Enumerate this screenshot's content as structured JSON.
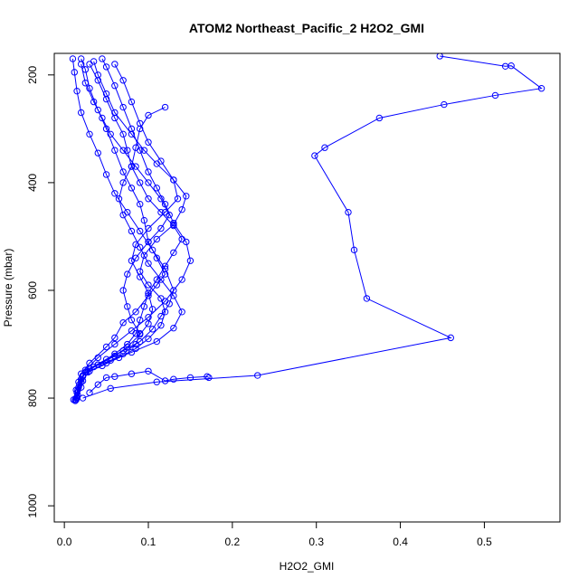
{
  "chart_data": {
    "type": "line",
    "title": "ATOM2 Northeast_Pacific_2 H2O2_GMI",
    "xlabel": "H2O2_GMI",
    "ylabel": "Pressure (mbar)",
    "xlim": [
      -0.012,
      0.59
    ],
    "ylim": [
      1030,
      160
    ],
    "y_reversed": true,
    "x_ticks": [
      0.0,
      0.1,
      0.2,
      0.3,
      0.4,
      0.5
    ],
    "x_tick_labels": [
      "0.0",
      "0.1",
      "0.2",
      "0.3",
      "0.4",
      "0.5"
    ],
    "y_ticks": [
      200,
      400,
      600,
      800,
      1000
    ],
    "y_tick_labels": [
      "200",
      "400",
      "600",
      "800",
      "1000"
    ],
    "grid": false,
    "legend": "none",
    "marker": "open-circle",
    "color": "#0000ff",
    "series": [
      {
        "values": [
          [
            0.013,
            803
          ],
          [
            0.015,
            790
          ],
          [
            0.017,
            770
          ],
          [
            0.02,
            755
          ],
          [
            0.03,
            735
          ],
          [
            0.05,
            705
          ],
          [
            0.06,
            688
          ],
          [
            0.07,
            660
          ],
          [
            0.085,
            640
          ],
          [
            0.1,
            610
          ],
          [
            0.11,
            590
          ],
          [
            0.12,
            570
          ],
          [
            0.11,
            540
          ],
          [
            0.1,
            510
          ],
          [
            0.095,
            470
          ],
          [
            0.09,
            440
          ],
          [
            0.08,
            410
          ],
          [
            0.07,
            380
          ],
          [
            0.06,
            340
          ],
          [
            0.05,
            300
          ],
          [
            0.04,
            265
          ],
          [
            0.03,
            225
          ],
          [
            0.025,
            190
          ],
          [
            0.02,
            170
          ]
        ]
      },
      {
        "values": [
          [
            0.014,
            803
          ],
          [
            0.016,
            785
          ],
          [
            0.02,
            765
          ],
          [
            0.025,
            748
          ],
          [
            0.04,
            725
          ],
          [
            0.06,
            700
          ],
          [
            0.08,
            675
          ],
          [
            0.1,
            650
          ],
          [
            0.12,
            620
          ],
          [
            0.14,
            580
          ],
          [
            0.15,
            545
          ],
          [
            0.145,
            510
          ],
          [
            0.13,
            475
          ],
          [
            0.12,
            440
          ],
          [
            0.11,
            410
          ],
          [
            0.1,
            380
          ],
          [
            0.09,
            340
          ],
          [
            0.08,
            300
          ],
          [
            0.07,
            260
          ],
          [
            0.06,
            220
          ],
          [
            0.05,
            185
          ],
          [
            0.045,
            170
          ]
        ]
      },
      {
        "values": [
          [
            0.015,
            800
          ],
          [
            0.02,
            780
          ],
          [
            0.022,
            760
          ],
          [
            0.03,
            745
          ],
          [
            0.05,
            728
          ],
          [
            0.07,
            712
          ],
          [
            0.09,
            695
          ],
          [
            0.105,
            672
          ],
          [
            0.115,
            648
          ],
          [
            0.125,
            625
          ],
          [
            0.13,
            600
          ],
          [
            0.12,
            560
          ],
          [
            0.105,
            525
          ],
          [
            0.09,
            490
          ],
          [
            0.075,
            455
          ],
          [
            0.06,
            420
          ],
          [
            0.05,
            385
          ],
          [
            0.04,
            345
          ],
          [
            0.03,
            310
          ],
          [
            0.02,
            270
          ],
          [
            0.015,
            230
          ],
          [
            0.012,
            195
          ],
          [
            0.01,
            170
          ]
        ]
      },
      {
        "values": [
          [
            0.013,
            805
          ],
          [
            0.018,
            775
          ],
          [
            0.025,
            752
          ],
          [
            0.04,
            738
          ],
          [
            0.06,
            722
          ],
          [
            0.075,
            705
          ],
          [
            0.09,
            682
          ],
          [
            0.1,
            662
          ],
          [
            0.105,
            635
          ],
          [
            0.1,
            605
          ],
          [
            0.09,
            575
          ],
          [
            0.08,
            545
          ],
          [
            0.085,
            515
          ],
          [
            0.1,
            485
          ],
          [
            0.12,
            455
          ],
          [
            0.135,
            430
          ],
          [
            0.13,
            395
          ],
          [
            0.115,
            360
          ],
          [
            0.1,
            325
          ],
          [
            0.09,
            290
          ],
          [
            0.08,
            250
          ],
          [
            0.07,
            210
          ],
          [
            0.06,
            180
          ]
        ]
      },
      {
        "values": [
          [
            0.014,
            800
          ],
          [
            0.017,
            780
          ],
          [
            0.022,
            758
          ],
          [
            0.035,
            742
          ],
          [
            0.055,
            730
          ],
          [
            0.08,
            715
          ],
          [
            0.11,
            695
          ],
          [
            0.13,
            670
          ],
          [
            0.14,
            640
          ],
          [
            0.13,
            610
          ],
          [
            0.115,
            580
          ],
          [
            0.1,
            550
          ],
          [
            0.09,
            520
          ],
          [
            0.08,
            490
          ],
          [
            0.07,
            460
          ],
          [
            0.065,
            430
          ],
          [
            0.07,
            400
          ],
          [
            0.08,
            370
          ],
          [
            0.085,
            335
          ],
          [
            0.09,
            300
          ],
          [
            0.1,
            275
          ],
          [
            0.12,
            260
          ]
        ]
      },
      {
        "values": [
          [
            0.015,
            798
          ],
          [
            0.02,
            770
          ],
          [
            0.03,
            750
          ],
          [
            0.05,
            735
          ],
          [
            0.07,
            718
          ],
          [
            0.085,
            700
          ],
          [
            0.09,
            680
          ],
          [
            0.08,
            655
          ],
          [
            0.075,
            630
          ],
          [
            0.07,
            600
          ],
          [
            0.075,
            570
          ],
          [
            0.085,
            540
          ],
          [
            0.1,
            510
          ],
          [
            0.115,
            485
          ],
          [
            0.125,
            460
          ],
          [
            0.115,
            430
          ],
          [
            0.1,
            400
          ],
          [
            0.085,
            370
          ],
          [
            0.07,
            340
          ],
          [
            0.055,
            310
          ],
          [
            0.045,
            280
          ],
          [
            0.035,
            250
          ],
          [
            0.025,
            215
          ],
          [
            0.02,
            180
          ]
        ]
      },
      {
        "values": [
          [
            0.016,
            795
          ],
          [
            0.022,
            768
          ],
          [
            0.028,
            752
          ],
          [
            0.045,
            740
          ],
          [
            0.065,
            725
          ],
          [
            0.085,
            708
          ],
          [
            0.1,
            690
          ],
          [
            0.115,
            665
          ],
          [
            0.12,
            640
          ],
          [
            0.115,
            615
          ],
          [
            0.1,
            590
          ],
          [
            0.09,
            565
          ],
          [
            0.095,
            535
          ],
          [
            0.11,
            505
          ],
          [
            0.13,
            478
          ],
          [
            0.14,
            450
          ],
          [
            0.145,
            425
          ],
          [
            0.13,
            395
          ],
          [
            0.11,
            365
          ],
          [
            0.095,
            340
          ],
          [
            0.08,
            310
          ],
          [
            0.06,
            270
          ],
          [
            0.05,
            235
          ],
          [
            0.04,
            200
          ],
          [
            0.035,
            175
          ]
        ]
      },
      {
        "values": [
          [
            0.03,
            790
          ],
          [
            0.04,
            775
          ],
          [
            0.05,
            762
          ],
          [
            0.06,
            760
          ],
          [
            0.08,
            755
          ],
          [
            0.1,
            750
          ],
          [
            0.12,
            768
          ],
          [
            0.13,
            765
          ],
          [
            0.15,
            762
          ],
          [
            0.17,
            760
          ],
          [
            0.172,
            762
          ]
        ]
      },
      {
        "values": [
          [
            0.022,
            800
          ],
          [
            0.055,
            782
          ],
          [
            0.11,
            770
          ],
          [
            0.23,
            758
          ],
          [
            0.46,
            688
          ],
          [
            0.36,
            615
          ],
          [
            0.345,
            525
          ],
          [
            0.338,
            455
          ],
          [
            0.298,
            350
          ],
          [
            0.31,
            335
          ],
          [
            0.375,
            280
          ],
          [
            0.452,
            255
          ],
          [
            0.513,
            238
          ],
          [
            0.568,
            225
          ],
          [
            0.532,
            183
          ],
          [
            0.525,
            184
          ],
          [
            0.447,
            165
          ]
        ]
      },
      {
        "values": [
          [
            0.011,
            803
          ],
          [
            0.014,
            785
          ],
          [
            0.02,
            765
          ],
          [
            0.026,
            752
          ],
          [
            0.04,
            738
          ],
          [
            0.06,
            718
          ],
          [
            0.075,
            700
          ],
          [
            0.085,
            680
          ],
          [
            0.09,
            655
          ],
          [
            0.095,
            630
          ],
          [
            0.1,
            605
          ],
          [
            0.11,
            580
          ],
          [
            0.12,
            555
          ],
          [
            0.13,
            530
          ],
          [
            0.14,
            505
          ],
          [
            0.13,
            480
          ],
          [
            0.115,
            455
          ],
          [
            0.1,
            430
          ],
          [
            0.09,
            400
          ],
          [
            0.08,
            370
          ],
          [
            0.075,
            340
          ],
          [
            0.07,
            310
          ],
          [
            0.06,
            280
          ],
          [
            0.05,
            245
          ],
          [
            0.04,
            210
          ],
          [
            0.03,
            180
          ]
        ]
      }
    ]
  }
}
